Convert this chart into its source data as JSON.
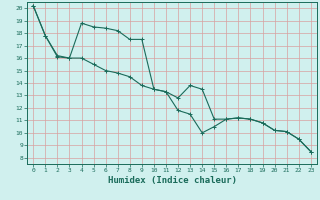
{
  "title": "",
  "xlabel": "Humidex (Indice chaleur)",
  "ylabel": "",
  "xlim": [
    -0.5,
    23.5
  ],
  "ylim": [
    7.5,
    20.5
  ],
  "xticks": [
    0,
    1,
    2,
    3,
    4,
    5,
    6,
    7,
    8,
    9,
    10,
    11,
    12,
    13,
    14,
    15,
    16,
    17,
    18,
    19,
    20,
    21,
    22,
    23
  ],
  "yticks": [
    8,
    9,
    10,
    11,
    12,
    13,
    14,
    15,
    16,
    17,
    18,
    19,
    20
  ],
  "background_color": "#d0f0ee",
  "grid_color": "#d8a0a0",
  "line_color": "#1a6b5a",
  "line1_x": [
    0,
    1,
    2,
    3,
    4,
    5,
    6,
    7,
    8,
    9,
    10,
    11,
    12,
    13,
    14,
    15,
    16,
    17,
    18,
    19,
    20,
    21,
    22,
    23
  ],
  "line1_y": [
    20.2,
    17.8,
    16.1,
    16.0,
    18.8,
    18.5,
    18.4,
    18.2,
    17.5,
    17.5,
    13.5,
    13.3,
    11.8,
    11.5,
    10.0,
    10.5,
    11.1,
    11.2,
    11.1,
    10.8,
    10.2,
    10.1,
    9.5,
    8.5
  ],
  "line2_x": [
    0,
    1,
    2,
    3,
    4,
    5,
    6,
    7,
    8,
    9,
    10,
    11,
    12,
    13,
    14,
    15,
    16,
    17,
    18,
    19,
    20,
    21,
    22,
    23
  ],
  "line2_y": [
    20.2,
    17.8,
    16.2,
    16.0,
    16.0,
    15.5,
    15.0,
    14.8,
    14.5,
    13.8,
    13.5,
    13.3,
    12.8,
    13.8,
    13.5,
    11.1,
    11.1,
    11.2,
    11.1,
    10.8,
    10.2,
    10.1,
    9.5,
    8.5
  ],
  "fontsize_tick": 4.5,
  "fontsize_label": 6.5
}
